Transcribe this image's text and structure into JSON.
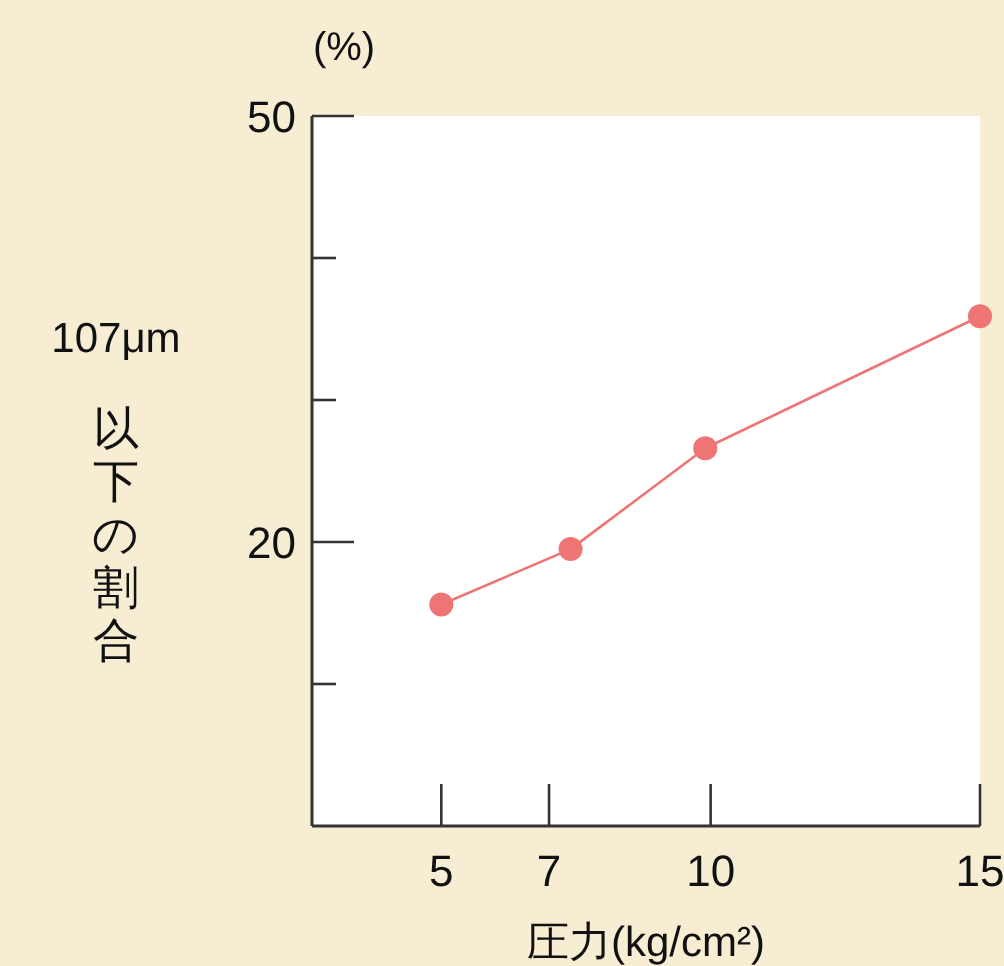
{
  "chart_data": {
    "type": "line",
    "ylabel": "107μm以下の割合",
    "xlabel": "圧力(kg/cm²)",
    "annotations": [
      "(%)"
    ],
    "x": [
      5,
      7.4,
      9.9,
      15
    ],
    "series": [
      {
        "color": "#ef7575",
        "values": [
          15.6,
          19.5,
          26.6,
          35.9
        ]
      }
    ],
    "marker": "circle",
    "xlim": [
      2.6,
      15
    ],
    "xticks": [
      5,
      7,
      10,
      15
    ],
    "ylim": [
      0,
      50
    ],
    "yticks": [
      {
        "value": 10,
        "label": null
      },
      20,
      {
        "value": 30,
        "label": null
      },
      {
        "value": 40,
        "label": null
      },
      50
    ]
  }
}
